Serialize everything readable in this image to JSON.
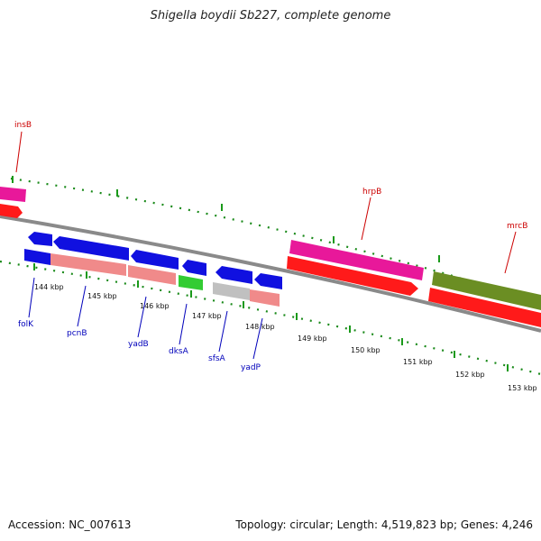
{
  "title": "Shigella boydii Sb227, complete genome",
  "footer": {
    "accession": "Accession: NC_007613",
    "stats": "Topology: circular; Length: 4,519,823 bp; Genes: 4,246"
  },
  "colors": {
    "forward_gene": "#e8189a",
    "forward_cds": "#ff1a1a",
    "reverse_gene": "#1010e0",
    "reverse_cds": "#f08a8a",
    "dksA": "#33cc33",
    "sfsA": "#c0c0c0",
    "mrcB_gene": "#6b8e23",
    "tick_major": "#1a9a1a",
    "tick_minor": "#1a8a1a",
    "top_labels": "#cc0000",
    "bottom_labels": "#0000bb"
  },
  "ticks": [
    "144 kbp",
    "145 kbp",
    "146 kbp",
    "147 kbp",
    "148 kbp",
    "149 kbp",
    "150 kbp",
    "151 kbp",
    "152 kbp",
    "153 kbp"
  ],
  "top_genes": [
    "insB",
    "hrpB",
    "mrcB"
  ],
  "bottom_genes": [
    "folK",
    "pcnB",
    "yadB",
    "dksA",
    "sfsA",
    "yadP"
  ]
}
